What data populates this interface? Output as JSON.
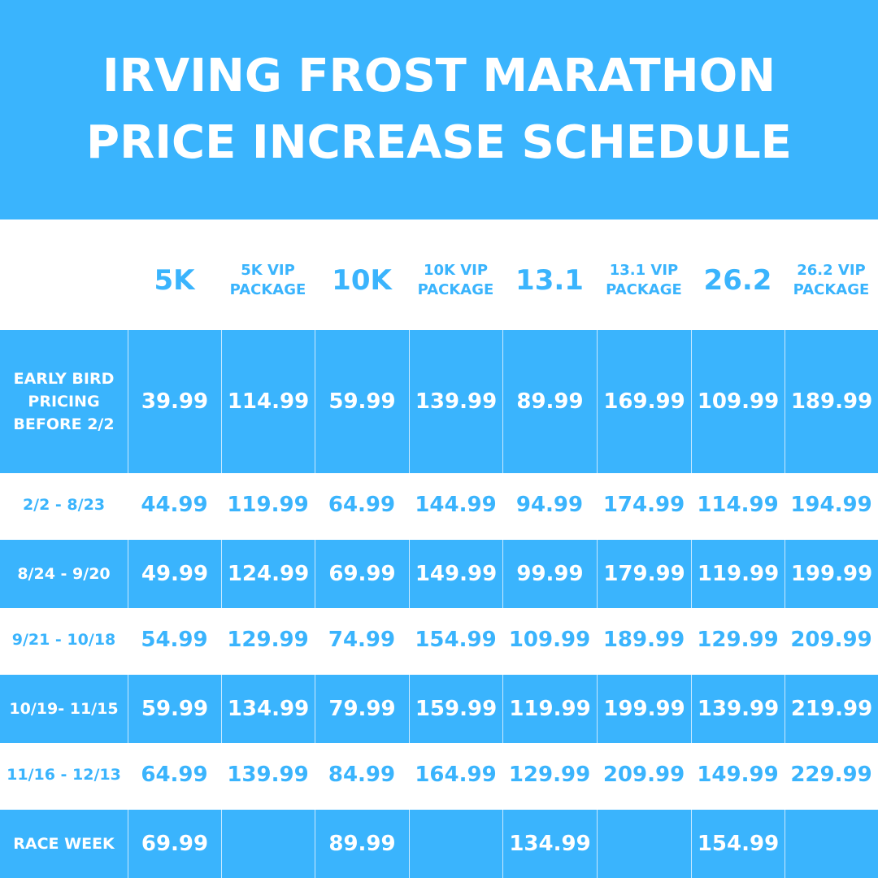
{
  "title": {
    "line1": "IRVING FROST MARATHON",
    "line2": "PRICE INCREASE SCHEDULE"
  },
  "columns": [
    {
      "label": "5K",
      "size": "big"
    },
    {
      "label": "5K VIP PACKAGE",
      "size": "small"
    },
    {
      "label": "10K",
      "size": "big"
    },
    {
      "label": "10K VIP PACKAGE",
      "size": "small"
    },
    {
      "label": "13.1",
      "size": "big"
    },
    {
      "label": "13.1 VIP PACKAGE",
      "size": "small"
    },
    {
      "label": "26.2",
      "size": "big"
    },
    {
      "label": "26.2 VIP PACKAGE",
      "size": "small"
    }
  ],
  "rows": [
    {
      "label": "EARLY BIRD PRICING BEFORE 2/2",
      "prices": [
        "39.99",
        "114.99",
        "59.99",
        "139.99",
        "89.99",
        "169.99",
        "109.99",
        "189.99"
      ],
      "style": "blue"
    },
    {
      "label": "2/2 - 8/23",
      "prices": [
        "44.99",
        "119.99",
        "64.99",
        "144.99",
        "94.99",
        "174.99",
        "114.99",
        "194.99"
      ],
      "style": "white"
    },
    {
      "label": "8/24 - 9/20",
      "prices": [
        "49.99",
        "124.99",
        "69.99",
        "149.99",
        "99.99",
        "179.99",
        "119.99",
        "199.99"
      ],
      "style": "blue"
    },
    {
      "label": "9/21 - 10/18",
      "prices": [
        "54.99",
        "129.99",
        "74.99",
        "154.99",
        "109.99",
        "189.99",
        "129.99",
        "209.99"
      ],
      "style": "white"
    },
    {
      "label": "10/19- 11/15",
      "prices": [
        "59.99",
        "134.99",
        "79.99",
        "159.99",
        "119.99",
        "199.99",
        "139.99",
        "219.99"
      ],
      "style": "blue"
    },
    {
      "label": "11/16 - 12/13",
      "prices": [
        "64.99",
        "139.99",
        "84.99",
        "164.99",
        "129.99",
        "209.99",
        "149.99",
        "229.99"
      ],
      "style": "white"
    },
    {
      "label": "RACE WEEK",
      "prices": [
        "69.99",
        "",
        "89.99",
        "",
        "134.99",
        "",
        "154.99",
        ""
      ],
      "style": "blue"
    }
  ],
  "colors": {
    "accent": "#3ab4fd",
    "text_on_accent": "#ffffff",
    "grid_line": "#c9e9ff"
  }
}
